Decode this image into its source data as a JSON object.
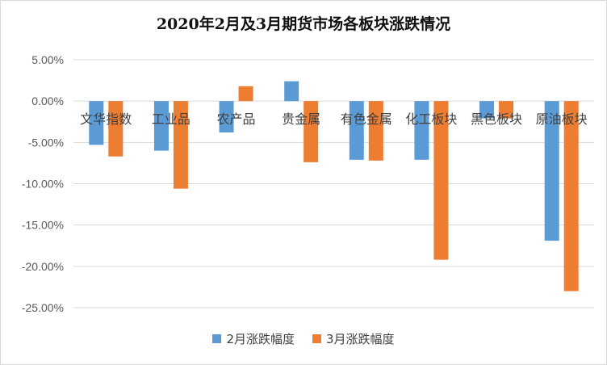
{
  "chart_data": {
    "type": "bar",
    "title": "2020年2月及3月期货市场各板块涨跌情况",
    "categories": [
      "文华指数",
      "工业品",
      "农产品",
      "贵金属",
      "有色金属",
      "化工板块",
      "黑色板块",
      "原油板块"
    ],
    "series": [
      {
        "name": "2月涨跌幅度",
        "color": "#5b9bd5",
        "values": [
          -5.3,
          -6.0,
          -3.8,
          2.4,
          -7.1,
          -7.1,
          -2.1,
          -16.9
        ]
      },
      {
        "name": "3月涨跌幅度",
        "color": "#ed7d31",
        "values": [
          -6.7,
          -10.6,
          1.8,
          -7.4,
          -7.2,
          -19.2,
          -2.1,
          -23.0
        ]
      }
    ],
    "yticks": [
      "5.00%",
      "0.00%",
      "-5.00%",
      "-10.00%",
      "-15.00%",
      "-20.00%",
      "-25.00%"
    ],
    "ylim": [
      -25,
      5
    ],
    "grid": true,
    "legend_position": "bottom"
  }
}
